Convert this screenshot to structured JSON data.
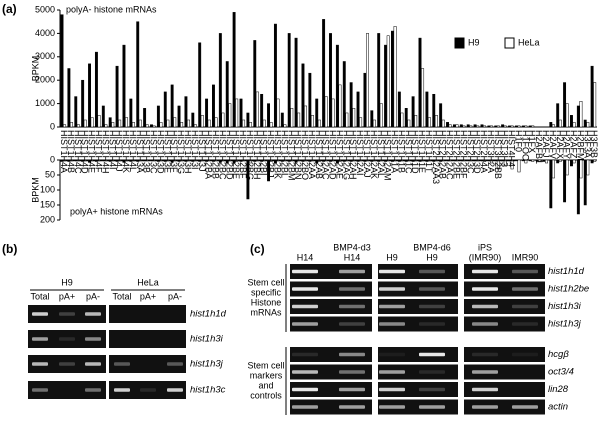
{
  "panel_labels": [
    "(a)",
    "(b)",
    "(c)"
  ],
  "chart_data": [
    {
      "type": "bar",
      "title": "polyA- histone mRNAs",
      "ylabel": "BPKM",
      "categories": [
        "HIST1H4A",
        "HIST1H4B",
        "HIST1H4C",
        "HIST1H4D",
        "HIST1H4E",
        "HIST1H4F",
        "HIST1H4H",
        "HIST1H4I",
        "HIST1H4J",
        "HIST1H4K",
        "HIST1H4L",
        "HIST1H3A",
        "HIST1H3B",
        "HIST1H3C",
        "HIST1H3D",
        "HIST1H3E",
        "HIST1H3F",
        "HIST1H3G",
        "HIST1H3H",
        "HIST1H3I",
        "HIST1H3J",
        "HIST1H2BA",
        "HIST1H2BB",
        "HIST1H2BC",
        "HIST1H2BD",
        "HIST1H2BE",
        "HIST1H2BF",
        "HIST1H2BG",
        "HIST1H2BH",
        "HIST1H2BI",
        "HIST1H2BJ",
        "HIST1H2BK",
        "HIST1H2BL",
        "HIST1H2BM",
        "HIST1H2BN",
        "HIST1H2BO",
        "HIST1H2AA",
        "HIST1H2AB",
        "HIST1H2AC",
        "HIST1H2AD",
        "HIST1H2AE",
        "HIST1H2AG",
        "HIST1H2AH",
        "HIST1H2AI",
        "HIST1H2AJ",
        "HIST1H2AK",
        "HIST1H2AL",
        "HIST1H2AM",
        "HIST1H1A",
        "HIST1H1B",
        "HIST1H1C",
        "HIST1H1D",
        "HIST1H1E",
        "HIST1H1T",
        "HIST2H2AA3",
        "HIST2H2AB",
        "HIST2H2AC",
        "HIST2H2BE",
        "HIST2H2BF",
        "HIST2H3C",
        "HIST2H3D",
        "HIST2H4A",
        "HIST3H2A",
        "HIST3H2BB",
        "HIST3H3",
        "HIST4H4",
        "H1F0",
        "H1FOO",
        "H1FX",
        "H2AFB1",
        "H2AFJ",
        "H2AFV",
        "H2AFX",
        "H2AFY",
        "H2AFZ",
        "H2BFM",
        "H3F3A",
        "H3F3B"
      ],
      "series": [
        {
          "name": "H9",
          "color": "#000000",
          "values": [
            4800,
            2500,
            1300,
            2000,
            2700,
            3200,
            900,
            400,
            2600,
            3500,
            1200,
            4500,
            800,
            100,
            900,
            1500,
            1800,
            900,
            1300,
            600,
            3600,
            1200,
            1800,
            4000,
            2800,
            4900,
            1200,
            600,
            3700,
            1400,
            1000,
            4400,
            600,
            4000,
            3800,
            2700,
            2300,
            1200,
            4600,
            4000,
            3500,
            2800,
            1900,
            1500,
            2300,
            700,
            4000,
            3500,
            4100,
            1500,
            800,
            1300,
            3800,
            1500,
            1400,
            1000,
            200,
            100,
            100,
            100,
            100,
            100,
            50,
            50,
            100,
            50,
            50,
            50,
            50,
            0,
            0,
            200,
            1000,
            1900,
            500,
            900,
            300,
            2600
          ]
        },
        {
          "name": "HeLa",
          "color": "#ffffff",
          "values": [
            100,
            200,
            100,
            300,
            400,
            500,
            100,
            200,
            300,
            400,
            200,
            300,
            100,
            50,
            200,
            300,
            400,
            200,
            300,
            100,
            500,
            300,
            400,
            600,
            1000,
            1200,
            300,
            200,
            1500,
            300,
            200,
            1200,
            100,
            800,
            600,
            900,
            500,
            300,
            1300,
            1200,
            1800,
            600,
            800,
            400,
            4000,
            300,
            1000,
            3900,
            4300,
            600,
            300,
            500,
            2500,
            400,
            500,
            300,
            100,
            100,
            50,
            50,
            50,
            50,
            50,
            50,
            50,
            50,
            50,
            50,
            50,
            0,
            0,
            100,
            300,
            1000,
            200,
            1100,
            200,
            1900
          ]
        }
      ],
      "ylim": [
        0,
        5000
      ],
      "yticks": [
        0,
        1000,
        2000,
        3000,
        4000,
        5000
      ],
      "legend": "upper right"
    },
    {
      "type": "bar",
      "title": "polyA+ histone mRNAs",
      "ylabel": "BPKM",
      "inverted": true,
      "series": [
        {
          "color": "#000000",
          "values": [
            5,
            5,
            3,
            5,
            8,
            5,
            3,
            5,
            5,
            8,
            5,
            5,
            3,
            3,
            5,
            5,
            8,
            5,
            5,
            5,
            5,
            5,
            5,
            8,
            10,
            10,
            5,
            130,
            5,
            5,
            70,
            10,
            5,
            5,
            8,
            5,
            5,
            10,
            5,
            5,
            10,
            5,
            5,
            5,
            5,
            5,
            5,
            5,
            5,
            5,
            5,
            5,
            5,
            5,
            5,
            5,
            3,
            3,
            3,
            3,
            3,
            3,
            3,
            3,
            3,
            3,
            3,
            3,
            3,
            3,
            5,
            160,
            10,
            140,
            20,
            180,
            150,
            10
          ]
        },
        {
          "color": "#ffffff",
          "values": [
            3,
            3,
            3,
            3,
            3,
            3,
            3,
            3,
            3,
            3,
            3,
            3,
            3,
            3,
            3,
            3,
            3,
            3,
            3,
            3,
            3,
            3,
            3,
            3,
            3,
            5,
            3,
            10,
            3,
            3,
            5,
            3,
            3,
            3,
            3,
            3,
            3,
            5,
            3,
            3,
            5,
            3,
            3,
            3,
            3,
            3,
            3,
            3,
            3,
            3,
            3,
            3,
            3,
            3,
            3,
            3,
            3,
            3,
            3,
            3,
            3,
            5,
            10,
            30,
            20,
            30,
            40,
            10,
            5,
            5,
            10,
            60,
            5,
            50,
            10,
            60,
            50,
            5
          ]
        }
      ],
      "ylim": [
        0,
        200
      ],
      "yticks": [
        0,
        50,
        100,
        150,
        200
      ]
    }
  ],
  "panel_b": {
    "groups": [
      "H9",
      "HeLa"
    ],
    "lanes": [
      "Total",
      "pA+",
      "pA-",
      "Total",
      "pA+",
      "pA-"
    ],
    "genes": [
      "hist1h1d",
      "hist1h3i",
      "hist1h3j",
      "hist1h3c"
    ]
  },
  "panel_c": {
    "columns": [
      [
        "H14"
      ],
      [
        "BMP4-d3",
        "H14"
      ],
      [
        "H9"
      ],
      [
        "BMP4-d6",
        "H9"
      ],
      [
        "iPS",
        "(IMR90)"
      ],
      [
        "IMR90"
      ]
    ],
    "sections": [
      {
        "label": [
          "Stem cell",
          "specific",
          "Histone",
          "mRNAs"
        ],
        "genes": [
          "hist1h1d",
          "hist1h2be",
          "hist1h3i",
          "hist1h3j"
        ]
      },
      {
        "label": [
          "Stem cell",
          "markers",
          "and",
          "controls"
        ],
        "genes": [
          "hcgβ",
          "oct3/4",
          "lin28",
          "actin"
        ]
      }
    ]
  }
}
